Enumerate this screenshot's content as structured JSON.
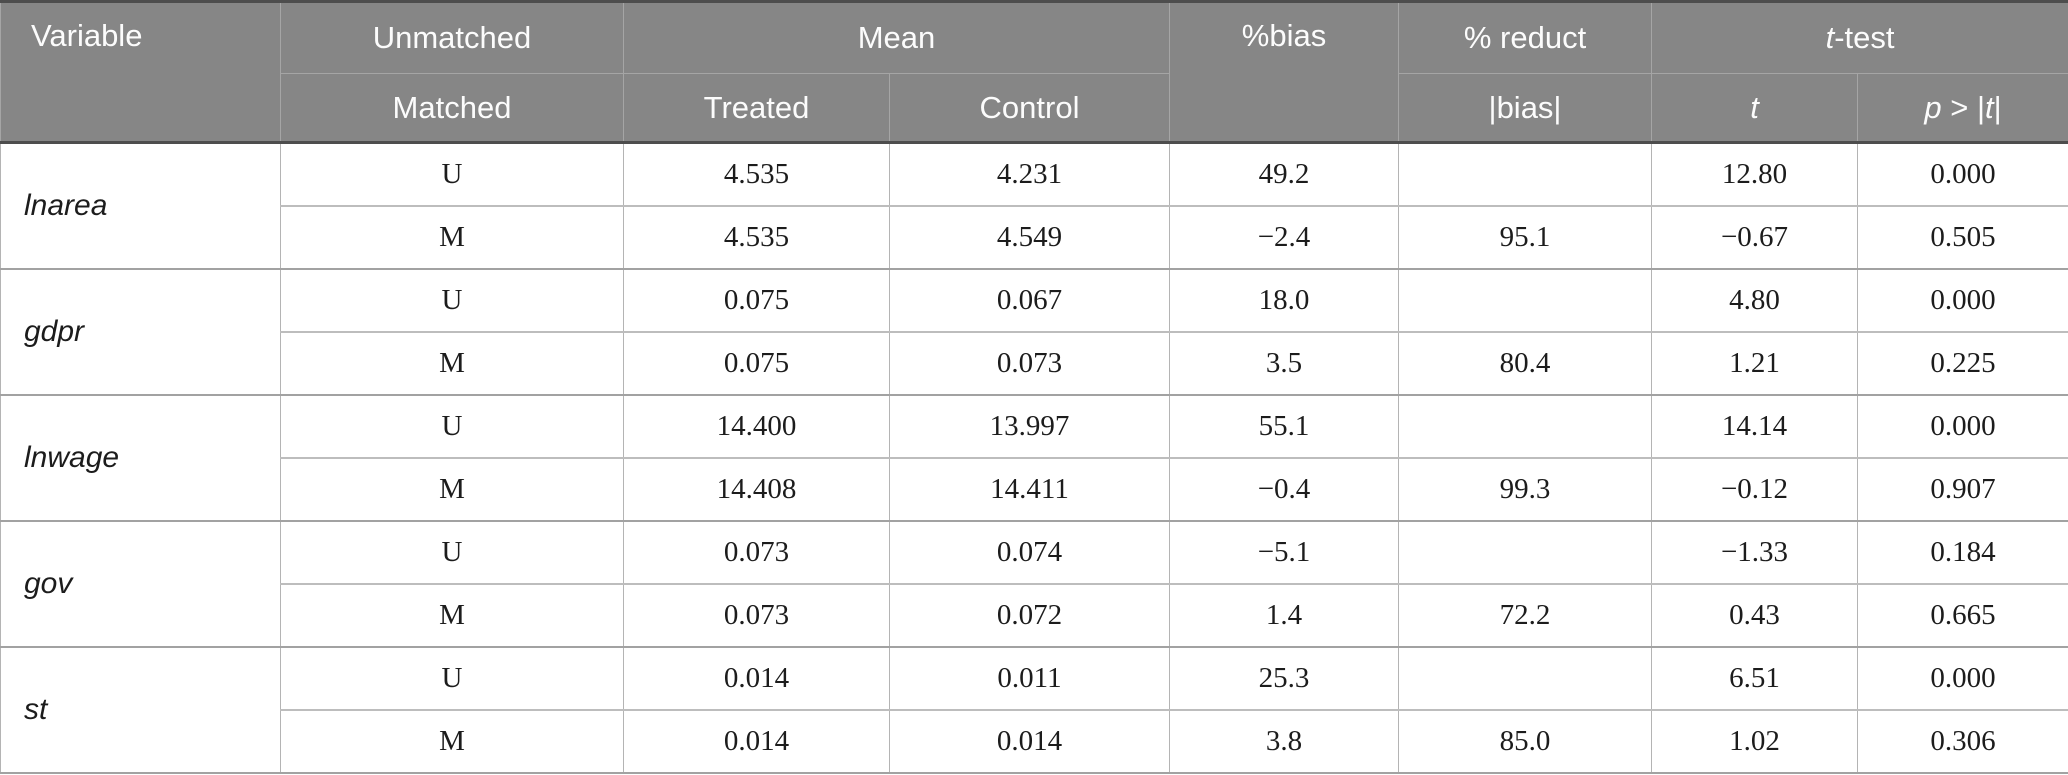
{
  "table": {
    "header": {
      "variable": "Variable",
      "unmatched": "Unmatched",
      "matched": "Matched",
      "mean": "Mean",
      "treated": "Treated",
      "control": "Control",
      "pct_bias": "%bias",
      "pct_reduct": "% reduct",
      "abs_bias": "|bias|",
      "t_test": {
        "italic": "t",
        "rest": "-test"
      },
      "t_col": "t",
      "p_col": {
        "p": "p",
        "gt": " > |",
        "t": "t",
        "close": "|"
      }
    },
    "groups": [
      {
        "variable": "lnarea",
        "rows": [
          {
            "sample": "U",
            "treated": "4.535",
            "control": "4.231",
            "bias": "49.2",
            "reduct": "",
            "t": "12.80",
            "p": "0.000"
          },
          {
            "sample": "M",
            "treated": "4.535",
            "control": "4.549",
            "bias": "−2.4",
            "reduct": "95.1",
            "t": "−0.67",
            "p": "0.505"
          }
        ]
      },
      {
        "variable": "gdpr",
        "rows": [
          {
            "sample": "U",
            "treated": "0.075",
            "control": "0.067",
            "bias": "18.0",
            "reduct": "",
            "t": "4.80",
            "p": "0.000"
          },
          {
            "sample": "M",
            "treated": "0.075",
            "control": "0.073",
            "bias": "3.5",
            "reduct": "80.4",
            "t": "1.21",
            "p": "0.225"
          }
        ]
      },
      {
        "variable": "lnwage",
        "rows": [
          {
            "sample": "U",
            "treated": "14.400",
            "control": "13.997",
            "bias": "55.1",
            "reduct": "",
            "t": "14.14",
            "p": "0.000"
          },
          {
            "sample": "M",
            "treated": "14.408",
            "control": "14.411",
            "bias": "−0.4",
            "reduct": "99.3",
            "t": "−0.12",
            "p": "0.907"
          }
        ]
      },
      {
        "variable": "gov",
        "rows": [
          {
            "sample": "U",
            "treated": "0.073",
            "control": "0.074",
            "bias": "−5.1",
            "reduct": "",
            "t": "−1.33",
            "p": "0.184"
          },
          {
            "sample": "M",
            "treated": "0.073",
            "control": "0.072",
            "bias": "1.4",
            "reduct": "72.2",
            "t": "0.43",
            "p": "0.665"
          }
        ]
      },
      {
        "variable": "st",
        "rows": [
          {
            "sample": "U",
            "treated": "0.014",
            "control": "0.011",
            "bias": "25.3",
            "reduct": "",
            "t": "6.51",
            "p": "0.000"
          },
          {
            "sample": "M",
            "treated": "0.014",
            "control": "0.014",
            "bias": "3.8",
            "reduct": "85.0",
            "t": "1.02",
            "p": "0.306"
          }
        ]
      }
    ]
  },
  "colors": {
    "header_bg": "#868686",
    "header_text": "#fcfcfc",
    "border_dark": "#4d4d4d",
    "border_light": "#b4b4b4"
  }
}
